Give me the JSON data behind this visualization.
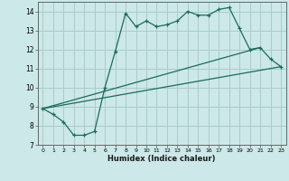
{
  "xlabel": "Humidex (Indice chaleur)",
  "ylabel": "",
  "bg_color": "#cce8e8",
  "grid_color": "#aacccc",
  "line_color": "#1a6b5a",
  "xlim": [
    -0.5,
    23.5
  ],
  "ylim": [
    7,
    14.5
  ],
  "xticks": [
    0,
    1,
    2,
    3,
    4,
    5,
    6,
    7,
    8,
    9,
    10,
    11,
    12,
    13,
    14,
    15,
    16,
    17,
    18,
    19,
    20,
    21,
    22,
    23
  ],
  "yticks": [
    7,
    8,
    9,
    10,
    11,
    12,
    13,
    14
  ],
  "line1_x": [
    0,
    1,
    2,
    3,
    4,
    5,
    6,
    7,
    8,
    9,
    10,
    11,
    12,
    13,
    14,
    15,
    16,
    17,
    18,
    19,
    20,
    21,
    22,
    23
  ],
  "line1_y": [
    8.9,
    8.6,
    8.2,
    7.5,
    7.5,
    7.7,
    10.0,
    11.9,
    13.9,
    13.2,
    13.5,
    13.2,
    13.3,
    13.5,
    14.0,
    13.8,
    13.8,
    14.1,
    14.2,
    13.1,
    12.0,
    12.1,
    11.5,
    11.1
  ],
  "line2_x": [
    0,
    23
  ],
  "line2_y": [
    8.9,
    11.1
  ],
  "line3_x": [
    0,
    21
  ],
  "line3_y": [
    8.9,
    12.1
  ]
}
